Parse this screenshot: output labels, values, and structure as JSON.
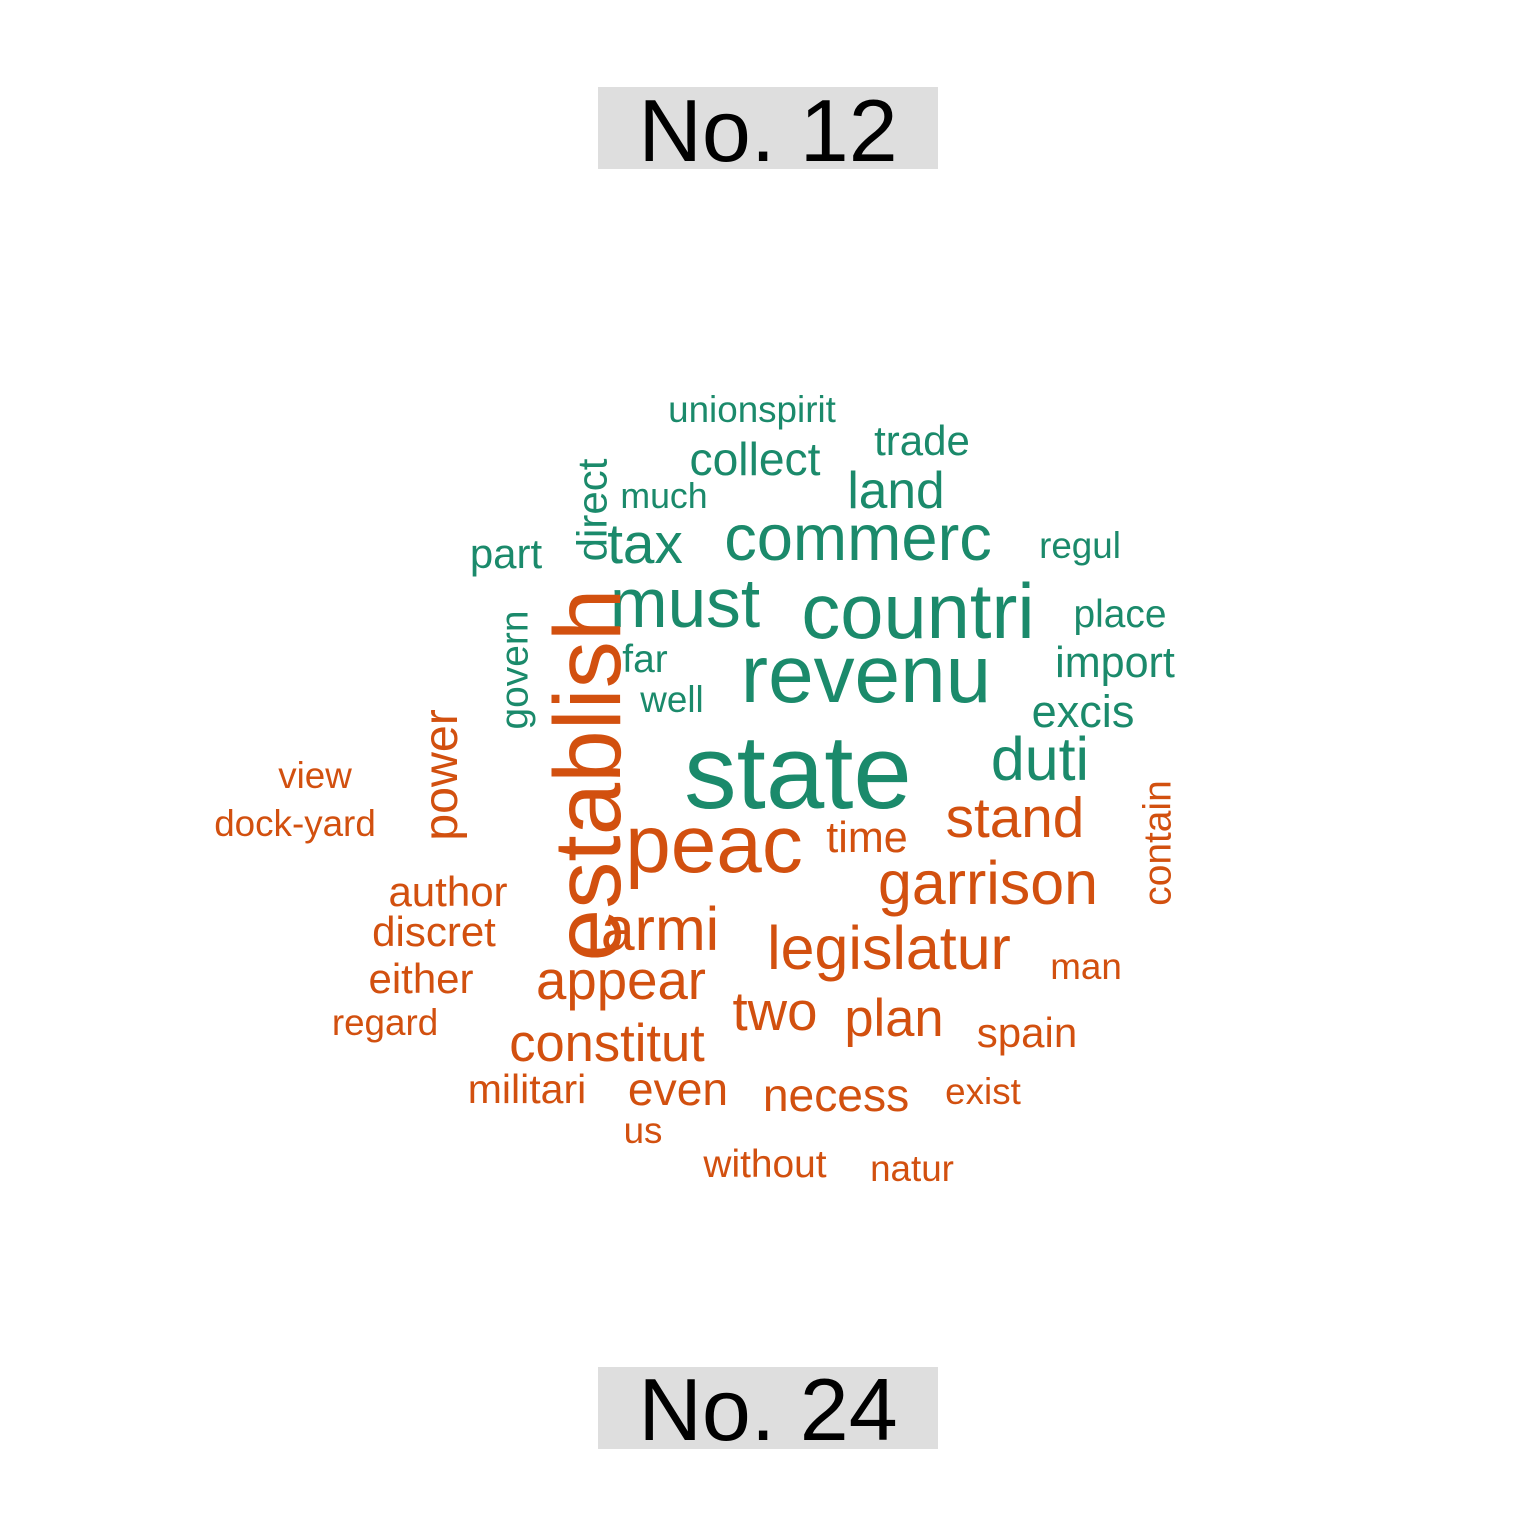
{
  "colors": {
    "group_top": "#1b8a6b",
    "group_bottom": "#d2500f",
    "label_bg": "#dedede"
  },
  "chart_data": {
    "type": "comparison-wordcloud",
    "groups": [
      {
        "name": "No. 12",
        "color": "#1b8a6b"
      },
      {
        "name": "No. 24",
        "color": "#d2500f"
      }
    ],
    "words": [
      {
        "text": "state",
        "group": 0,
        "weight": 100,
        "vertical": false
      },
      {
        "text": "revenu",
        "group": 0,
        "weight": 78,
        "vertical": false
      },
      {
        "text": "countri",
        "group": 0,
        "weight": 74,
        "vertical": false
      },
      {
        "text": "must",
        "group": 0,
        "weight": 66,
        "vertical": false
      },
      {
        "text": "commerc",
        "group": 0,
        "weight": 62,
        "vertical": false
      },
      {
        "text": "duti",
        "group": 0,
        "weight": 58,
        "vertical": false
      },
      {
        "text": "tax",
        "group": 0,
        "weight": 54,
        "vertical": false
      },
      {
        "text": "land",
        "group": 0,
        "weight": 49,
        "vertical": false
      },
      {
        "text": "collect",
        "group": 0,
        "weight": 44,
        "vertical": false
      },
      {
        "text": "excis",
        "group": 0,
        "weight": 43,
        "vertical": false
      },
      {
        "text": "import",
        "group": 0,
        "weight": 41,
        "vertical": false
      },
      {
        "text": "direct",
        "group": 0,
        "weight": 40,
        "vertical": true
      },
      {
        "text": "trade",
        "group": 0,
        "weight": 40,
        "vertical": false
      },
      {
        "text": "part",
        "group": 0,
        "weight": 40,
        "vertical": false
      },
      {
        "text": "govern",
        "group": 0,
        "weight": 37,
        "vertical": true
      },
      {
        "text": "far",
        "group": 0,
        "weight": 37,
        "vertical": false
      },
      {
        "text": "place",
        "group": 0,
        "weight": 37,
        "vertical": false
      },
      {
        "text": "unionspirit",
        "group": 0,
        "weight": 35,
        "vertical": false
      },
      {
        "text": "well",
        "group": 0,
        "weight": 35,
        "vertical": false
      },
      {
        "text": "regul",
        "group": 0,
        "weight": 35,
        "vertical": false
      },
      {
        "text": "much",
        "group": 0,
        "weight": 34,
        "vertical": false
      },
      {
        "text": "establish",
        "group": 1,
        "weight": 90,
        "vertical": true
      },
      {
        "text": "peac",
        "group": 1,
        "weight": 78,
        "vertical": false
      },
      {
        "text": "garrison",
        "group": 1,
        "weight": 58,
        "vertical": false
      },
      {
        "text": "armi",
        "group": 1,
        "weight": 58,
        "vertical": false
      },
      {
        "text": "legislatur",
        "group": 1,
        "weight": 58,
        "vertical": false
      },
      {
        "text": "stand",
        "group": 1,
        "weight": 54,
        "vertical": false
      },
      {
        "text": "appear",
        "group": 1,
        "weight": 52,
        "vertical": false
      },
      {
        "text": "two",
        "group": 1,
        "weight": 52,
        "vertical": false
      },
      {
        "text": "constitut",
        "group": 1,
        "weight": 50,
        "vertical": false
      },
      {
        "text": "plan",
        "group": 1,
        "weight": 50,
        "vertical": false
      },
      {
        "text": "power",
        "group": 1,
        "weight": 46,
        "vertical": true
      },
      {
        "text": "even",
        "group": 1,
        "weight": 44,
        "vertical": false
      },
      {
        "text": "necess",
        "group": 1,
        "weight": 44,
        "vertical": false
      },
      {
        "text": "time",
        "group": 1,
        "weight": 41,
        "vertical": false
      },
      {
        "text": "author",
        "group": 1,
        "weight": 40,
        "vertical": false
      },
      {
        "text": "discret",
        "group": 1,
        "weight": 40,
        "vertical": false
      },
      {
        "text": "either",
        "group": 1,
        "weight": 40,
        "vertical": false
      },
      {
        "text": "spain",
        "group": 1,
        "weight": 40,
        "vertical": false
      },
      {
        "text": "militari",
        "group": 1,
        "weight": 39,
        "vertical": false
      },
      {
        "text": "contain",
        "group": 1,
        "weight": 37,
        "vertical": true
      },
      {
        "text": "without",
        "group": 1,
        "weight": 37,
        "vertical": false
      },
      {
        "text": "view",
        "group": 1,
        "weight": 35,
        "vertical": false
      },
      {
        "text": "dock-yard",
        "group": 1,
        "weight": 35,
        "vertical": false
      },
      {
        "text": "regard",
        "group": 1,
        "weight": 35,
        "vertical": false
      },
      {
        "text": "us",
        "group": 1,
        "weight": 35,
        "vertical": false
      },
      {
        "text": "exist",
        "group": 1,
        "weight": 35,
        "vertical": false
      },
      {
        "text": "natur",
        "group": 1,
        "weight": 35,
        "vertical": false
      },
      {
        "text": "man",
        "group": 1,
        "weight": 35,
        "vertical": false
      }
    ]
  }
}
